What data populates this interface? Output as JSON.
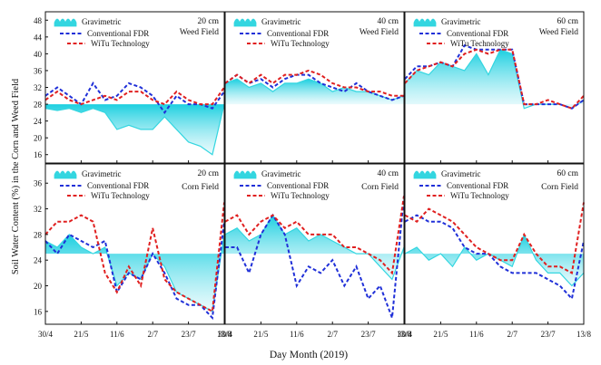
{
  "figure": {
    "ylabel": "Soil Water Content (%) in the Corn and Weed Field",
    "xlabel": "Day Month (2019)",
    "x_ticks": [
      "30/4",
      "21/5",
      "11/6",
      "2/7",
      "23/7",
      "13/8"
    ],
    "colors": {
      "gravimetric": "#33d6e0",
      "fdr": "#2030d8",
      "witu": "#e02020",
      "axis": "#111111"
    }
  },
  "legend": {
    "gravimetric": "Gravimetric",
    "fdr": "Conventional FDR",
    "witu": "WiTu Technology"
  },
  "chart_data": [
    {
      "type": "line",
      "panel": "weed-20",
      "depth": "20 cm",
      "field": "Weed Field",
      "ylim": [
        14,
        50
      ],
      "yticks": [
        16,
        20,
        24,
        28,
        32,
        36,
        40,
        44,
        48
      ],
      "x": [
        0,
        7,
        14,
        21,
        28,
        35,
        42,
        49,
        56,
        63,
        70,
        77,
        84,
        91,
        98,
        105
      ],
      "series": [
        {
          "name": "Gravimetric",
          "values": [
            27,
            26.5,
            27,
            26,
            27,
            26,
            22,
            23,
            22,
            22,
            25,
            22,
            19,
            18,
            16,
            28
          ]
        },
        {
          "name": "Conventional FDR",
          "values": [
            30,
            32,
            30,
            28,
            33,
            29,
            30,
            33,
            32,
            30,
            26,
            30,
            28,
            28,
            27,
            31
          ]
        },
        {
          "name": "WiTu Technology",
          "values": [
            29,
            31,
            29,
            28,
            29,
            30,
            29,
            31,
            31,
            29,
            28,
            31,
            29,
            28,
            28,
            32
          ]
        }
      ]
    },
    {
      "type": "line",
      "panel": "weed-40",
      "depth": "40 cm",
      "field": "Weed Field",
      "ylim": [
        14,
        50
      ],
      "x": [
        0,
        7,
        14,
        21,
        28,
        35,
        42,
        49,
        56,
        63,
        70,
        77,
        84,
        91,
        98,
        105
      ],
      "series": [
        {
          "name": "Gravimetric",
          "values": [
            33,
            34,
            32,
            33,
            31,
            33,
            33,
            34,
            33,
            31,
            32,
            31,
            31,
            30,
            29,
            30
          ]
        },
        {
          "name": "Conventional FDR",
          "values": [
            33,
            35,
            33,
            34,
            32,
            34,
            35,
            35,
            33,
            32,
            31,
            33,
            31,
            30,
            29,
            30
          ]
        },
        {
          "name": "WiTu Technology",
          "values": [
            33,
            35,
            33,
            35,
            33,
            35,
            35,
            36,
            35,
            33,
            32,
            32,
            31,
            31,
            30,
            30
          ]
        }
      ]
    },
    {
      "type": "line",
      "panel": "weed-60",
      "depth": "60 cm",
      "field": "Weed Field",
      "ylim": [
        14,
        50
      ],
      "x": [
        0,
        7,
        14,
        21,
        28,
        35,
        42,
        49,
        56,
        63,
        70,
        77,
        84,
        91,
        98,
        105
      ],
      "series": [
        {
          "name": "Gravimetric",
          "values": [
            33,
            36,
            35,
            38,
            37,
            36,
            40,
            35,
            41,
            40,
            27,
            28,
            28,
            28,
            27,
            29
          ]
        },
        {
          "name": "Conventional FDR",
          "values": [
            34,
            37,
            37,
            38,
            37,
            42,
            41,
            41,
            41,
            41,
            28,
            28,
            28,
            28,
            27,
            29
          ]
        },
        {
          "name": "WiTu Technology",
          "values": [
            33,
            36,
            37,
            38,
            37,
            40,
            41,
            40,
            41,
            41,
            28,
            28,
            29,
            28,
            27,
            30
          ]
        }
      ]
    },
    {
      "type": "line",
      "panel": "corn-20",
      "depth": "20 cm",
      "field": "Corn Field",
      "ylim": [
        14,
        39
      ],
      "yticks": [
        16,
        20,
        24,
        28,
        32,
        36
      ],
      "x": [
        0,
        7,
        14,
        21,
        28,
        35,
        42,
        49,
        56,
        63,
        70,
        77,
        84,
        91,
        98,
        105
      ],
      "series": [
        {
          "name": "Gravimetric",
          "values": [
            27,
            26,
            28,
            26,
            25,
            26,
            20,
            22,
            21,
            25,
            23,
            19,
            18,
            17,
            16,
            28
          ]
        },
        {
          "name": "Conventional FDR",
          "values": [
            27,
            25,
            28,
            27,
            26,
            27,
            19,
            22,
            21,
            25,
            22,
            18,
            17,
            17,
            15,
            30
          ]
        },
        {
          "name": "WiTu Technology",
          "values": [
            28,
            30,
            30,
            31,
            30,
            22,
            19,
            23,
            20,
            29,
            21,
            19,
            18,
            17,
            16,
            33
          ]
        }
      ]
    },
    {
      "type": "line",
      "panel": "corn-40",
      "depth": "40 cm",
      "field": "Corn Field",
      "ylim": [
        14,
        39
      ],
      "x": [
        0,
        7,
        14,
        21,
        28,
        35,
        42,
        49,
        56,
        63,
        70,
        77,
        84,
        91,
        98,
        105
      ],
      "series": [
        {
          "name": "Gravimetric",
          "values": [
            28,
            29,
            27,
            28,
            31,
            28,
            29,
            27,
            28,
            27,
            26,
            25,
            25,
            23,
            21,
            26
          ]
        },
        {
          "name": "Conventional FDR",
          "values": [
            26,
            26,
            22,
            28,
            31,
            28,
            20,
            23,
            22,
            24,
            20,
            23,
            18,
            20,
            15,
            34
          ]
        },
        {
          "name": "WiTu Technology",
          "values": [
            30,
            31,
            28,
            30,
            31,
            29,
            30,
            28,
            28,
            28,
            26,
            26,
            25,
            24,
            22,
            34
          ]
        }
      ]
    },
    {
      "type": "line",
      "panel": "corn-60",
      "depth": "60 cm",
      "field": "Corn Field",
      "ylim": [
        14,
        39
      ],
      "x": [
        0,
        7,
        14,
        21,
        28,
        35,
        42,
        49,
        56,
        63,
        70,
        77,
        84,
        91,
        98,
        105
      ],
      "series": [
        {
          "name": "Gravimetric",
          "values": [
            25,
            26,
            24,
            25,
            23,
            26,
            24,
            25,
            24,
            23,
            28,
            24,
            22,
            22,
            20,
            22
          ]
        },
        {
          "name": "Conventional FDR",
          "values": [
            30,
            31,
            30,
            30,
            29,
            26,
            25,
            25,
            23,
            22,
            22,
            22,
            21,
            20,
            18,
            27
          ]
        },
        {
          "name": "WiTu Technology",
          "values": [
            31,
            30,
            32,
            31,
            30,
            28,
            26,
            25,
            24,
            24,
            28,
            25,
            23,
            23,
            22,
            33
          ]
        }
      ]
    }
  ]
}
